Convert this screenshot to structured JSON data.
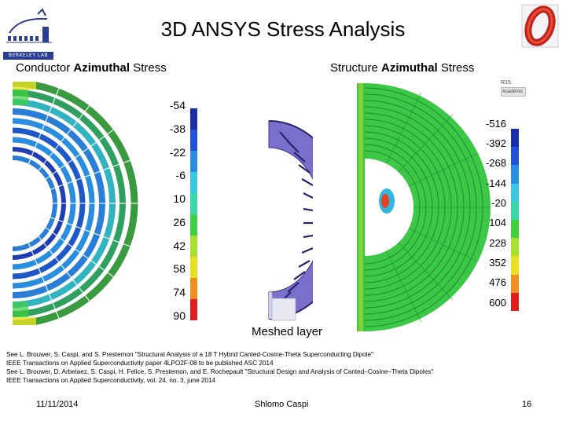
{
  "slide": {
    "title": "3D ANSYS Stress Analysis",
    "subtitle_left": {
      "bold": "Azimuthal",
      "prefix": "Conductor ",
      "suffix": " Stress"
    },
    "subtitle_right": {
      "bold": "Azimuthal",
      "prefix": "Structure ",
      "suffix": " Stress"
    },
    "logo_text": "BERKELEY LAB",
    "mesh_label": "Meshed layer",
    "badge": {
      "version": "R15.",
      "edition": "Academic"
    }
  },
  "legend_left": {
    "values": [
      "-54",
      "-38",
      "-22",
      "-6",
      "10",
      "26",
      "42",
      "58",
      "74",
      "90"
    ],
    "colors": [
      "#1a2ea8",
      "#2250d8",
      "#2a8ee0",
      "#3ac8e0",
      "#3ad8a8",
      "#40d040",
      "#a8e030",
      "#e8e020",
      "#f09020",
      "#e02020"
    ]
  },
  "legend_right": {
    "values": [
      "-516",
      "-392",
      "-268",
      "-144",
      "-20",
      "104",
      "228",
      "352",
      "476",
      "600"
    ],
    "colors": [
      "#1a2ea8",
      "#2250d8",
      "#2a8ee0",
      "#3ac8e0",
      "#3ad8a8",
      "#40d040",
      "#a8e030",
      "#e8e020",
      "#f09020",
      "#e02020"
    ]
  },
  "references": [
    "See  L. Brouwer, S. Caspi, and S. Prestemon \"Structural Analysis of a 18 T Hybrid Canted-Cosine-Theta Superconducting Dipole\"",
    "IEEE Transactions on Applied Superconductivity paper 4LPO2F-08 to be published ASC 2014",
    "See   L. Brouwer, D. Arbelaez, S. Caspi, H. Felice, S. Prestemon, and E. Rochepault  \"Structural Design and Analysis of Canted–Cosine–Theta Dipoles\"",
    "IEEE Transactions on Applied Superconductivity, vol. 24, no. 3, june 2014"
  ],
  "footer": {
    "date": "11/11/2014",
    "author": "Shlomo Caspi",
    "page": "16"
  }
}
